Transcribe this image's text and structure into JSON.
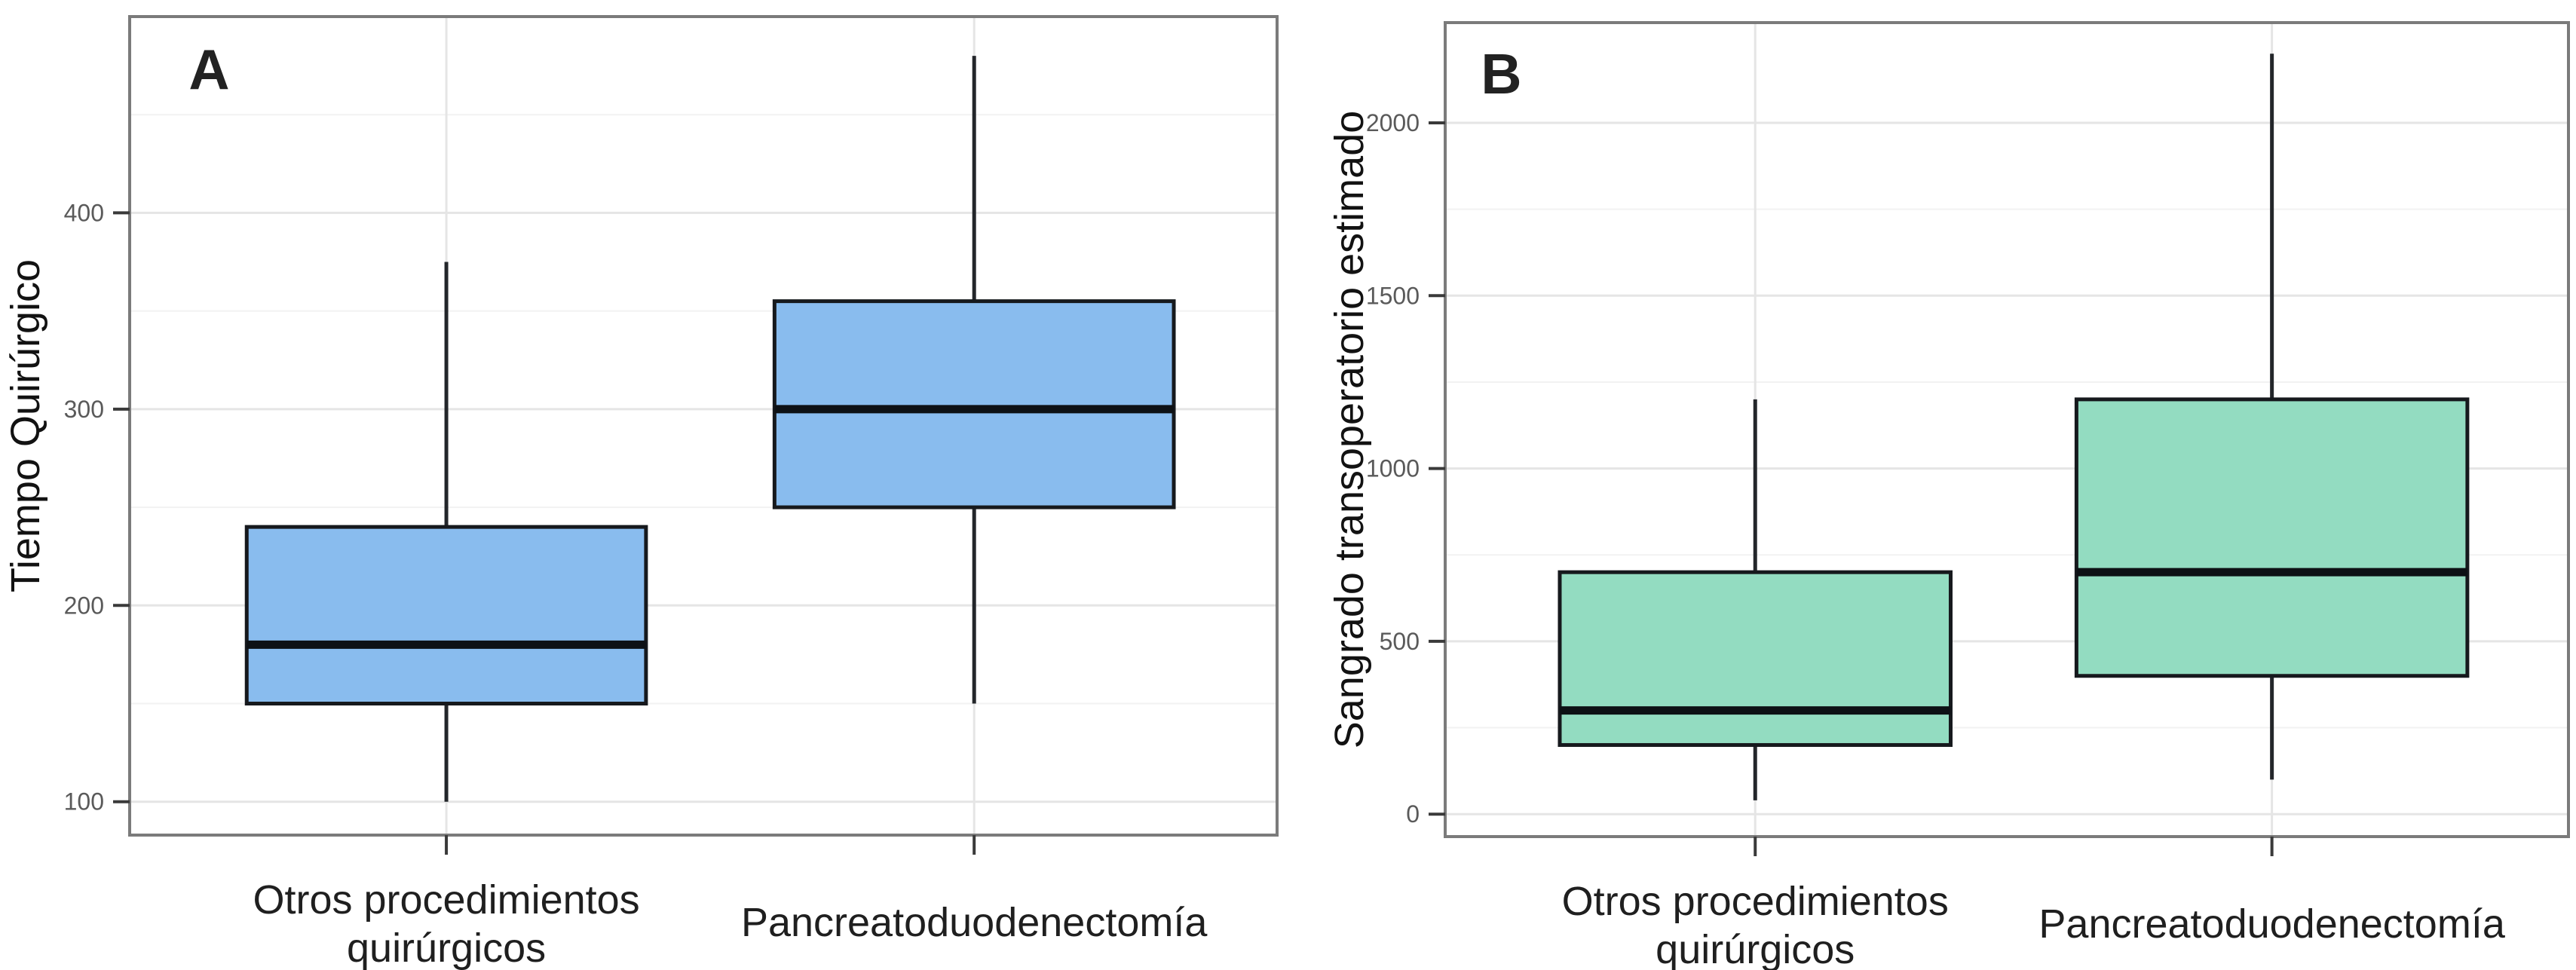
{
  "figure": {
    "background": "#ffffff",
    "panel_count": 2
  },
  "chart_data": [
    {
      "type": "boxplot",
      "panel_label": "A",
      "title": "",
      "xlabel": "",
      "ylabel": "Tiempo Quirúrgico",
      "categories": [
        "Otros procedimientos quirúrgicos",
        "Pancreatoduodenectomía"
      ],
      "category_lines": [
        [
          "Otros procedimientos",
          "quirúrgicos"
        ],
        [
          "Pancreatoduodenectomía"
        ]
      ],
      "series": [
        {
          "name": "Otros procedimientos quirúrgicos",
          "min": 100,
          "q1": 150,
          "median": 180,
          "q3": 240,
          "max": 375
        },
        {
          "name": "Pancreatoduodenectomía",
          "min": 150,
          "q1": 250,
          "median": 300,
          "q3": 355,
          "max": 480
        }
      ],
      "yticks": [
        100,
        200,
        300,
        400
      ],
      "minor_yticks": [
        150,
        250,
        350,
        450
      ],
      "ylim": [
        83,
        500
      ],
      "grid": true,
      "legend": "none",
      "box_fill": "#89bcee",
      "box_stroke": "#16191d"
    },
    {
      "type": "boxplot",
      "panel_label": "B",
      "title": "",
      "xlabel": "",
      "ylabel": "Sangrado transoperatorio estimado",
      "categories": [
        "Otros procedimientos quirúrgicos",
        "Pancreatoduodenectomía"
      ],
      "category_lines": [
        [
          "Otros procedimientos",
          "quirúrgicos"
        ],
        [
          "Pancreatoduodenectomía"
        ]
      ],
      "series": [
        {
          "name": "Otros procedimientos quirúrgicos",
          "min": 40,
          "q1": 200,
          "median": 300,
          "q3": 700,
          "max": 1200
        },
        {
          "name": "Pancreatoduodenectomía",
          "min": 100,
          "q1": 400,
          "median": 700,
          "q3": 1200,
          "max": 2200
        }
      ],
      "yticks": [
        0,
        500,
        1000,
        1500,
        2000
      ],
      "minor_yticks": [
        250,
        750,
        1250,
        1750
      ],
      "ylim": [
        -65,
        2290
      ],
      "grid": true,
      "legend": "none",
      "box_fill": "#93dcc1",
      "box_stroke": "#16191d"
    }
  ]
}
